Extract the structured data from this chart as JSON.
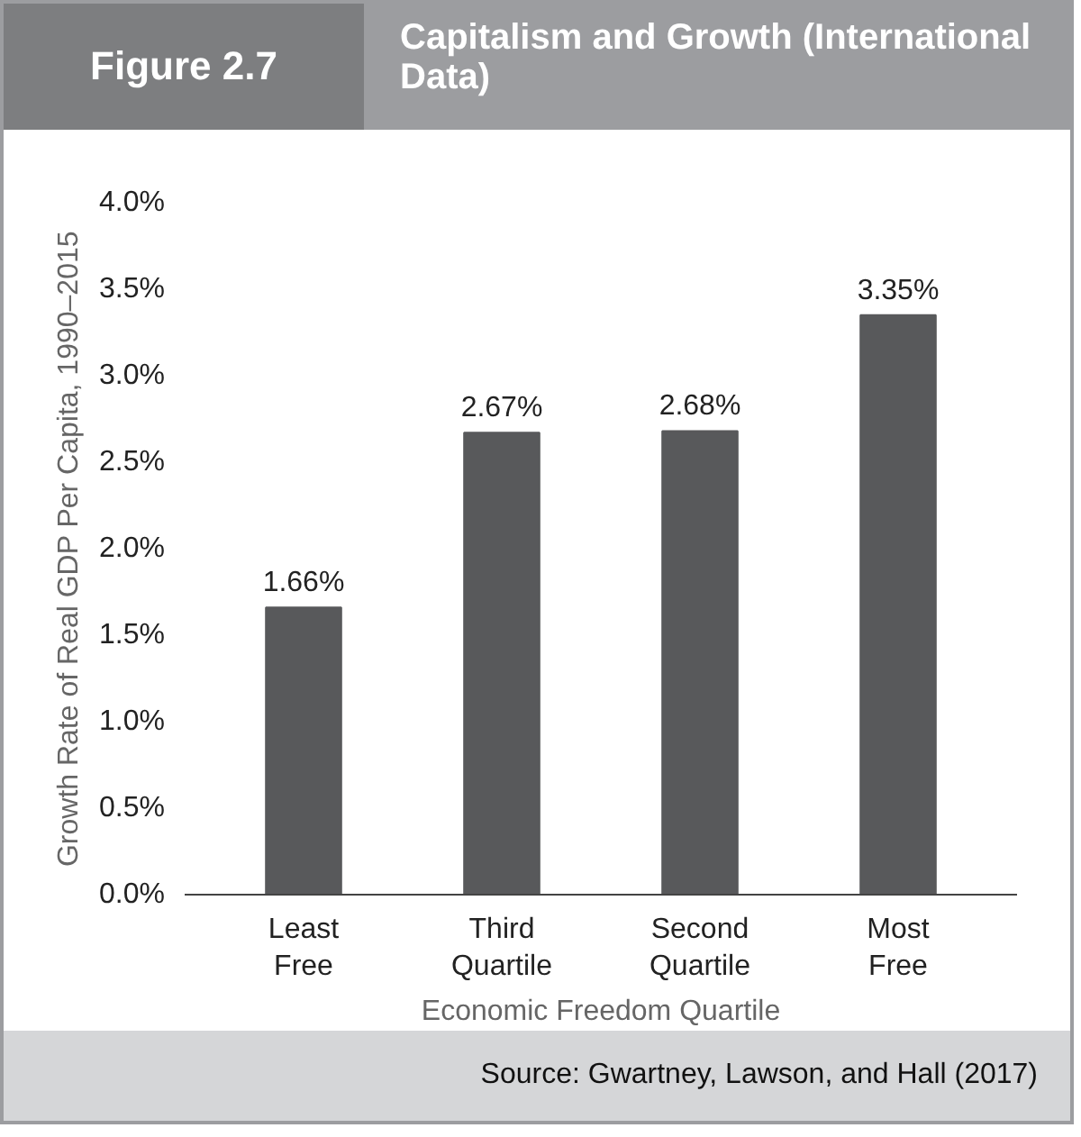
{
  "chart_data": {
    "type": "bar",
    "title": "Capitalism and Growth (International Data)",
    "xlabel": "Economic Freedom Quartile",
    "ylabel": "Growth Rate of Real GDP Per Capita, 1990–2015",
    "categories": [
      "Least Free",
      "Third Quartile",
      "Second Quartile",
      "Most Free"
    ],
    "values": [
      1.66,
      2.67,
      2.68,
      3.35
    ],
    "color": "#58595b",
    "value_labels": [
      "1.66%",
      "2.67%",
      "2.68%",
      "3.35%"
    ],
    "ylim": [
      0,
      4
    ],
    "yticks": [
      {
        "value": 0,
        "label": "0.0%"
      },
      {
        "value": 0.5,
        "label": "0.5%"
      },
      {
        "value": 1,
        "label": "1.0%"
      },
      {
        "value": 1.5,
        "label": "1.5%"
      },
      {
        "value": 2,
        "label": "2.0%"
      },
      {
        "value": 2.5,
        "label": "2.5%"
      },
      {
        "value": 3,
        "label": "3.0%"
      },
      {
        "value": 3.5,
        "label": "3.5%"
      },
      {
        "value": 4,
        "label": "4.0%"
      }
    ],
    "grid": false,
    "annotations": [
      "Figure 2.7",
      "Source: Gwartney, Lawson, and Hall (2017)"
    ]
  }
}
